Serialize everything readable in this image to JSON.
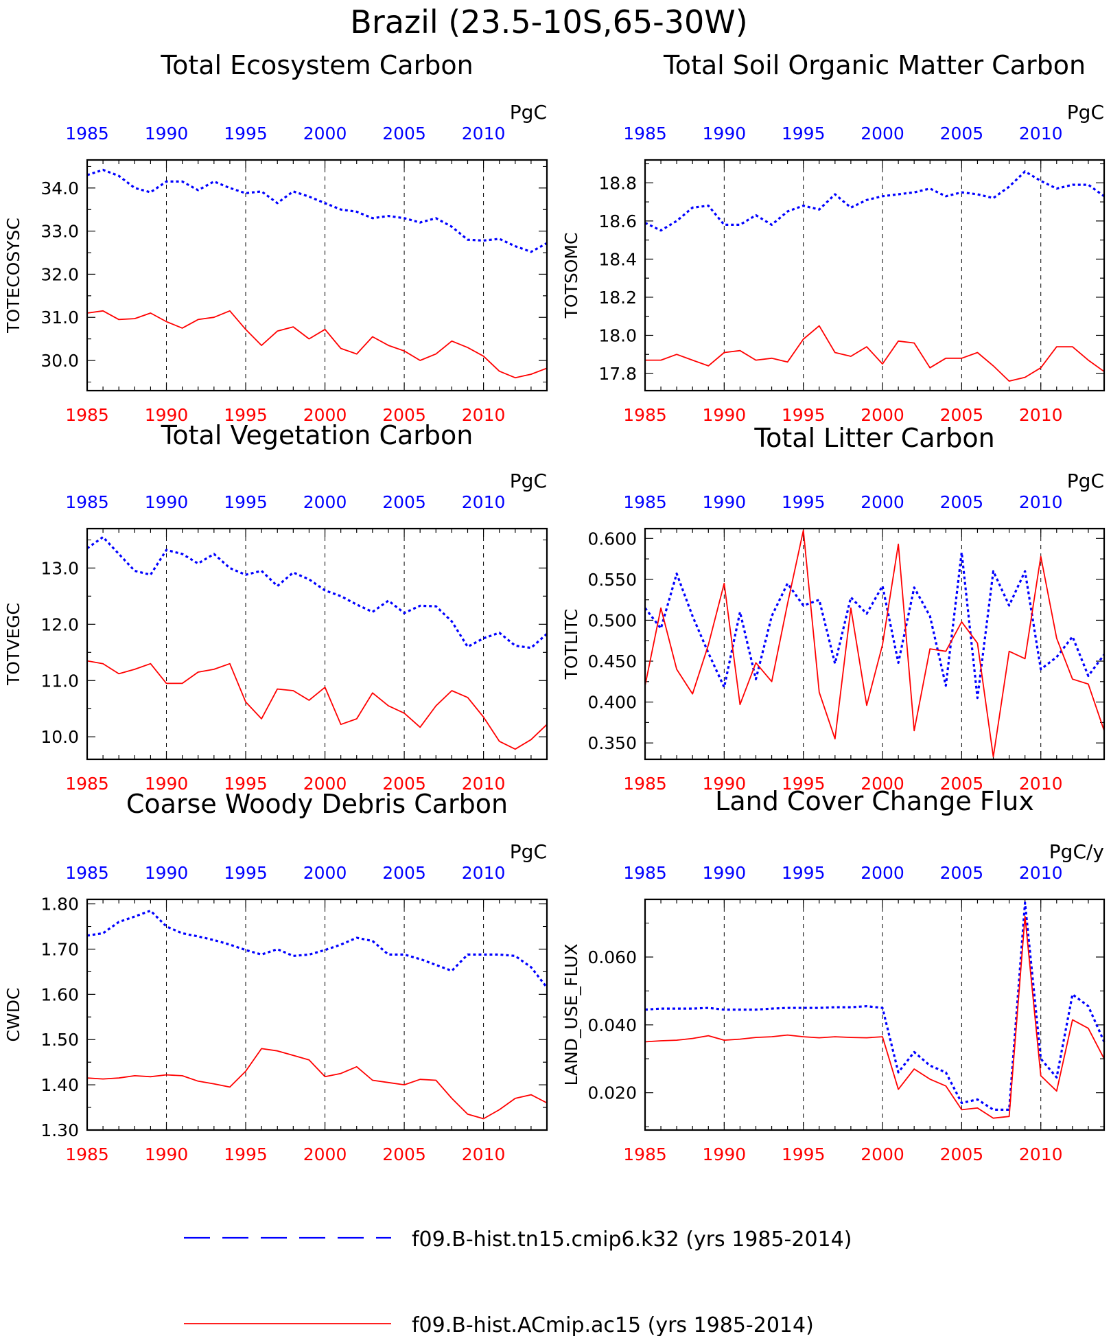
{
  "figure": {
    "title": "Brazil (23.5-10S,65-30W)"
  },
  "colors": {
    "blue": "#0000ff",
    "red": "#ff0000",
    "frame": "#000000",
    "grid": "#000000"
  },
  "legend": [
    {
      "label": "f09.B-hist.tn15.cmip6.k32 (yrs 1985-2014)",
      "color": "#0000ff",
      "style": "dashed"
    },
    {
      "label": "f09.B-hist.ACmip.ac15 (yrs 1985-2014)",
      "color": "#ff0000",
      "style": "solid"
    }
  ],
  "chart_data": [
    {
      "type": "line",
      "title": "Total Ecosystem Carbon",
      "ylabel": "TOTECOSYSC",
      "units": "PgC",
      "x": [
        1985,
        1986,
        1987,
        1988,
        1989,
        1990,
        1991,
        1992,
        1993,
        1994,
        1995,
        1996,
        1997,
        1998,
        1999,
        2000,
        2001,
        2002,
        2003,
        2004,
        2005,
        2006,
        2007,
        2008,
        2009,
        2010,
        2011,
        2012,
        2013,
        2014
      ],
      "xlim": [
        1985,
        2014
      ],
      "xticks": [
        1985,
        1990,
        1995,
        2000,
        2005,
        2010
      ],
      "ylim": [
        29.3,
        34.65
      ],
      "yticks": [
        30.0,
        31.0,
        32.0,
        33.0,
        34.0
      ],
      "ytick_labels": [
        "30.0",
        "31.0",
        "32.0",
        "33.0",
        "34.0"
      ],
      "series": [
        {
          "color": "blue",
          "style": "dashed",
          "values": [
            34.3,
            34.42,
            34.28,
            34.0,
            33.9,
            34.15,
            34.15,
            33.95,
            34.15,
            34.0,
            33.88,
            33.92,
            33.65,
            33.92,
            33.8,
            33.65,
            33.5,
            33.45,
            33.3,
            33.35,
            33.3,
            33.2,
            33.3,
            33.1,
            32.8,
            32.78,
            32.82,
            32.65,
            32.52,
            32.72
          ]
        },
        {
          "color": "red",
          "style": "solid",
          "values": [
            31.1,
            31.15,
            30.95,
            30.97,
            31.1,
            30.9,
            30.75,
            30.95,
            31.0,
            31.15,
            30.72,
            30.35,
            30.68,
            30.78,
            30.5,
            30.72,
            30.28,
            30.15,
            30.55,
            30.35,
            30.22,
            30.0,
            30.15,
            30.45,
            30.3,
            30.1,
            29.75,
            29.6,
            29.68,
            29.82
          ]
        }
      ]
    },
    {
      "type": "line",
      "title": "Total Soil Organic Matter Carbon",
      "ylabel": "TOTSOMC",
      "units": "PgC",
      "x": [
        1985,
        1986,
        1987,
        1988,
        1989,
        1990,
        1991,
        1992,
        1993,
        1994,
        1995,
        1996,
        1997,
        1998,
        1999,
        2000,
        2001,
        2002,
        2003,
        2004,
        2005,
        2006,
        2007,
        2008,
        2009,
        2010,
        2011,
        2012,
        2013,
        2014
      ],
      "xlim": [
        1985,
        2014
      ],
      "xticks": [
        1985,
        1990,
        1995,
        2000,
        2005,
        2010
      ],
      "ylim": [
        17.71,
        18.92
      ],
      "yticks": [
        17.8,
        18.0,
        18.2,
        18.4,
        18.6,
        18.8
      ],
      "ytick_labels": [
        "17.8",
        "18.0",
        "18.2",
        "18.4",
        "18.6",
        "18.8"
      ],
      "series": [
        {
          "color": "blue",
          "style": "dashed",
          "values": [
            18.59,
            18.55,
            18.6,
            18.67,
            18.68,
            18.58,
            18.58,
            18.63,
            18.58,
            18.65,
            18.68,
            18.66,
            18.74,
            18.67,
            18.71,
            18.73,
            18.74,
            18.75,
            18.77,
            18.73,
            18.75,
            18.74,
            18.72,
            18.78,
            18.86,
            18.81,
            18.77,
            18.79,
            18.79,
            18.73
          ]
        },
        {
          "color": "red",
          "style": "solid",
          "values": [
            17.87,
            17.87,
            17.9,
            17.87,
            17.84,
            17.91,
            17.92,
            17.87,
            17.88,
            17.86,
            17.98,
            18.05,
            17.91,
            17.89,
            17.94,
            17.85,
            17.97,
            17.96,
            17.83,
            17.88,
            17.88,
            17.91,
            17.84,
            17.76,
            17.78,
            17.83,
            17.94,
            17.94,
            17.87,
            17.81
          ]
        }
      ]
    },
    {
      "type": "line",
      "title": "Total Vegetation Carbon",
      "ylabel": "TOTVEGC",
      "units": "PgC",
      "x": [
        1985,
        1986,
        1987,
        1988,
        1989,
        1990,
        1991,
        1992,
        1993,
        1994,
        1995,
        1996,
        1997,
        1998,
        1999,
        2000,
        2001,
        2002,
        2003,
        2004,
        2005,
        2006,
        2007,
        2008,
        2009,
        2010,
        2011,
        2012,
        2013,
        2014
      ],
      "xlim": [
        1985,
        2014
      ],
      "xticks": [
        1985,
        1990,
        1995,
        2000,
        2005,
        2010
      ],
      "ylim": [
        9.6,
        13.7
      ],
      "yticks": [
        10.0,
        11.0,
        12.0,
        13.0
      ],
      "ytick_labels": [
        "10.0",
        "11.0",
        "12.0",
        "13.0"
      ],
      "series": [
        {
          "color": "blue",
          "style": "dashed",
          "values": [
            13.35,
            13.55,
            13.25,
            12.95,
            12.88,
            13.32,
            13.25,
            13.08,
            13.25,
            13.0,
            12.88,
            12.95,
            12.68,
            12.92,
            12.8,
            12.6,
            12.5,
            12.35,
            12.22,
            12.42,
            12.2,
            12.33,
            12.32,
            12.05,
            11.6,
            11.75,
            11.85,
            11.62,
            11.58,
            11.83
          ]
        },
        {
          "color": "red",
          "style": "solid",
          "values": [
            11.35,
            11.3,
            11.12,
            11.2,
            11.3,
            10.95,
            10.95,
            11.15,
            11.2,
            11.3,
            10.62,
            10.32,
            10.85,
            10.82,
            10.65,
            10.88,
            10.22,
            10.32,
            10.78,
            10.55,
            10.42,
            10.17,
            10.55,
            10.82,
            10.7,
            10.35,
            9.92,
            9.78,
            9.95,
            10.22
          ]
        }
      ]
    },
    {
      "type": "line",
      "title": "Total Litter Carbon",
      "ylabel": "TOTLITC",
      "units": "PgC",
      "x": [
        1985,
        1986,
        1987,
        1988,
        1989,
        1990,
        1991,
        1992,
        1993,
        1994,
        1995,
        1996,
        1997,
        1998,
        1999,
        2000,
        2001,
        2002,
        2003,
        2004,
        2005,
        2006,
        2007,
        2008,
        2009,
        2010,
        2011,
        2012,
        2013,
        2014
      ],
      "xlim": [
        1985,
        2014
      ],
      "xticks": [
        1985,
        1990,
        1995,
        2000,
        2005,
        2010
      ],
      "ylim": [
        0.33,
        0.612
      ],
      "yticks": [
        0.35,
        0.4,
        0.45,
        0.5,
        0.55,
        0.6
      ],
      "ytick_labels": [
        "0.350",
        "0.400",
        "0.450",
        "0.500",
        "0.550",
        "0.600"
      ],
      "series": [
        {
          "color": "blue",
          "style": "dashed",
          "values": [
            0.515,
            0.49,
            0.557,
            0.505,
            0.46,
            0.418,
            0.51,
            0.428,
            0.505,
            0.545,
            0.518,
            0.525,
            0.447,
            0.528,
            0.508,
            0.542,
            0.448,
            0.54,
            0.505,
            0.42,
            0.583,
            0.405,
            0.56,
            0.518,
            0.56,
            0.44,
            0.455,
            0.48,
            0.432,
            0.458
          ]
        },
        {
          "color": "red",
          "style": "solid",
          "values": [
            0.42,
            0.515,
            0.44,
            0.41,
            0.47,
            0.545,
            0.397,
            0.448,
            0.425,
            0.52,
            0.61,
            0.412,
            0.355,
            0.515,
            0.396,
            0.47,
            0.593,
            0.365,
            0.465,
            0.462,
            0.498,
            0.472,
            0.333,
            0.462,
            0.453,
            0.578,
            0.478,
            0.428,
            0.422,
            0.365
          ]
        }
      ]
    },
    {
      "type": "line",
      "title": "Coarse Woody Debris Carbon",
      "ylabel": "CWDC",
      "units": "PgC",
      "x": [
        1985,
        1986,
        1987,
        1988,
        1989,
        1990,
        1991,
        1992,
        1993,
        1994,
        1995,
        1996,
        1997,
        1998,
        1999,
        2000,
        2001,
        2002,
        2003,
        2004,
        2005,
        2006,
        2007,
        2008,
        2009,
        2010,
        2011,
        2012,
        2013,
        2014
      ],
      "xlim": [
        1985,
        2014
      ],
      "xticks": [
        1985,
        1990,
        1995,
        2000,
        2005,
        2010
      ],
      "ylim": [
        1.3,
        1.81
      ],
      "yticks": [
        1.3,
        1.4,
        1.5,
        1.6,
        1.7,
        1.8
      ],
      "ytick_labels": [
        "1.30",
        "1.40",
        "1.50",
        "1.60",
        "1.70",
        "1.80"
      ],
      "series": [
        {
          "color": "blue",
          "style": "dashed",
          "values": [
            1.73,
            1.735,
            1.76,
            1.772,
            1.785,
            1.75,
            1.735,
            1.728,
            1.72,
            1.71,
            1.698,
            1.688,
            1.7,
            1.685,
            1.688,
            1.698,
            1.71,
            1.725,
            1.718,
            1.688,
            1.688,
            1.678,
            1.665,
            1.652,
            1.688,
            1.688,
            1.688,
            1.685,
            1.66,
            1.615
          ]
        },
        {
          "color": "red",
          "style": "solid",
          "values": [
            1.415,
            1.413,
            1.415,
            1.42,
            1.418,
            1.422,
            1.42,
            1.408,
            1.402,
            1.395,
            1.43,
            1.48,
            1.475,
            1.465,
            1.455,
            1.418,
            1.425,
            1.44,
            1.41,
            1.405,
            1.4,
            1.412,
            1.41,
            1.37,
            1.335,
            1.325,
            1.345,
            1.37,
            1.378,
            1.36
          ]
        }
      ]
    },
    {
      "type": "line",
      "title": "Land Cover Change Flux",
      "ylabel": "LAND_USE_FLUX",
      "units": "PgC/y",
      "x": [
        1985,
        1986,
        1987,
        1988,
        1989,
        1990,
        1991,
        1992,
        1993,
        1994,
        1995,
        1996,
        1997,
        1998,
        1999,
        2000,
        2001,
        2002,
        2003,
        2004,
        2005,
        2006,
        2007,
        2008,
        2009,
        2010,
        2011,
        2012,
        2013,
        2014
      ],
      "xlim": [
        1985,
        2014
      ],
      "xticks": [
        1985,
        1990,
        1995,
        2000,
        2005,
        2010
      ],
      "ylim": [
        0.009,
        0.077
      ],
      "yticks": [
        0.02,
        0.04,
        0.06
      ],
      "ytick_labels": [
        "0.020",
        "0.040",
        "0.060"
      ],
      "series": [
        {
          "color": "blue",
          "style": "dashed",
          "values": [
            0.0445,
            0.0448,
            0.0448,
            0.0448,
            0.045,
            0.0445,
            0.0445,
            0.0445,
            0.0448,
            0.045,
            0.045,
            0.045,
            0.0452,
            0.0452,
            0.0455,
            0.045,
            0.026,
            0.032,
            0.028,
            0.026,
            0.017,
            0.018,
            0.015,
            0.015,
            0.076,
            0.03,
            0.0245,
            0.049,
            0.0455,
            0.035
          ]
        },
        {
          "color": "red",
          "style": "solid",
          "values": [
            0.035,
            0.0353,
            0.0355,
            0.036,
            0.0368,
            0.0355,
            0.0358,
            0.0363,
            0.0365,
            0.037,
            0.0365,
            0.0362,
            0.0365,
            0.0363,
            0.0362,
            0.0365,
            0.021,
            0.027,
            0.024,
            0.022,
            0.015,
            0.0155,
            0.0125,
            0.013,
            0.072,
            0.025,
            0.0205,
            0.0415,
            0.039,
            0.03
          ]
        }
      ]
    }
  ]
}
